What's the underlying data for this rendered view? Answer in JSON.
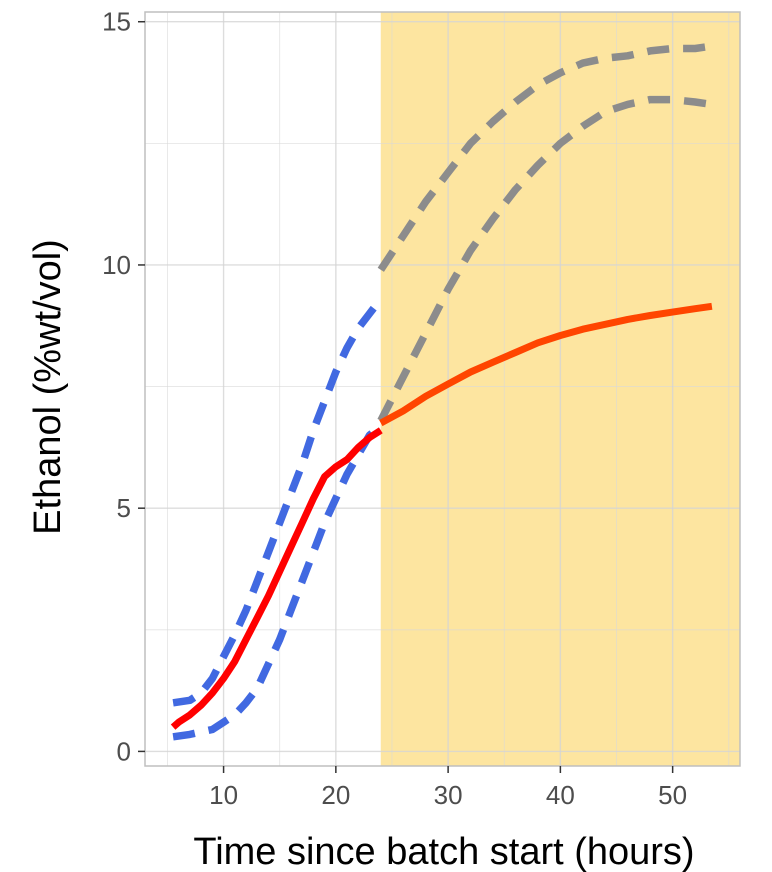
{
  "chart_data": {
    "type": "line",
    "title": "",
    "xlabel": "Time since batch start (hours)",
    "ylabel": "Ethanol (%wt/vol)",
    "xlim": [
      3,
      56
    ],
    "ylim": [
      -0.3,
      15.2
    ],
    "x_ticks": [
      10,
      20,
      30,
      40,
      50
    ],
    "y_ticks": [
      0,
      5,
      10,
      15
    ],
    "x_tick_labels": [
      "10",
      "20",
      "30",
      "40",
      "50"
    ],
    "y_tick_labels": [
      "0",
      "5",
      "10",
      "15"
    ],
    "grid": true,
    "legend": "none",
    "shaded_region": {
      "x_start": 24,
      "x_end": 56,
      "color": "#FDE49B"
    },
    "series": [
      {
        "style": "solid",
        "color": "#FF0000",
        "x": [
          5.5,
          6,
          7,
          8,
          9,
          10,
          11,
          12,
          13,
          14,
          15,
          16,
          17,
          18,
          19,
          20,
          21,
          22,
          23,
          24
        ],
        "y": [
          0.5,
          0.6,
          0.75,
          0.95,
          1.2,
          1.5,
          1.85,
          2.3,
          2.75,
          3.2,
          3.7,
          4.2,
          4.7,
          5.2,
          5.65,
          5.85,
          6.0,
          6.25,
          6.45,
          6.6
        ]
      },
      {
        "style": "solid",
        "color": "#FF4500",
        "x": [
          24,
          26,
          28,
          30,
          32,
          34,
          36,
          38,
          40,
          42,
          44,
          46,
          48,
          50,
          52,
          53.5
        ],
        "y": [
          6.75,
          7.0,
          7.3,
          7.55,
          7.8,
          8.0,
          8.2,
          8.4,
          8.55,
          8.68,
          8.78,
          8.88,
          8.96,
          9.03,
          9.1,
          9.15
        ]
      },
      {
        "style": "dashed",
        "color": "#4169E1",
        "x": [
          5.5,
          7,
          8,
          9,
          10,
          11,
          12,
          13,
          14,
          15,
          16,
          17,
          18,
          19,
          20,
          21,
          22,
          23,
          24
        ],
        "y": [
          1.0,
          1.05,
          1.2,
          1.5,
          1.95,
          2.4,
          2.9,
          3.5,
          4.1,
          4.7,
          5.3,
          5.9,
          6.6,
          7.2,
          7.8,
          8.3,
          8.7,
          9.0,
          9.3
        ]
      },
      {
        "style": "dashed",
        "color": "#4169E1",
        "x": [
          5.5,
          7,
          8,
          9,
          10,
          11,
          12,
          13,
          14,
          15,
          16,
          17,
          18,
          19,
          20,
          21,
          22,
          23,
          24
        ],
        "y": [
          0.3,
          0.35,
          0.4,
          0.45,
          0.6,
          0.75,
          1.0,
          1.3,
          1.8,
          2.3,
          2.9,
          3.5,
          4.1,
          4.7,
          5.2,
          5.7,
          6.1,
          6.5,
          6.7
        ]
      },
      {
        "style": "dashed",
        "color": "#8C8C8C",
        "x": [
          24,
          26,
          28,
          30,
          32,
          34,
          36,
          38,
          40,
          42,
          44,
          46,
          48,
          50,
          52,
          53.5
        ],
        "y": [
          9.9,
          10.6,
          11.3,
          11.9,
          12.5,
          12.95,
          13.35,
          13.7,
          13.95,
          14.15,
          14.25,
          14.3,
          14.4,
          14.45,
          14.45,
          14.5
        ]
      },
      {
        "style": "dashed",
        "color": "#8C8C8C",
        "x": [
          24,
          26,
          28,
          30,
          32,
          34,
          36,
          38,
          40,
          42,
          44,
          46,
          48,
          50,
          52,
          53.5
        ],
        "y": [
          6.8,
          7.7,
          8.6,
          9.5,
          10.3,
          10.95,
          11.55,
          12.05,
          12.5,
          12.85,
          13.15,
          13.3,
          13.4,
          13.4,
          13.35,
          13.3
        ]
      }
    ]
  }
}
